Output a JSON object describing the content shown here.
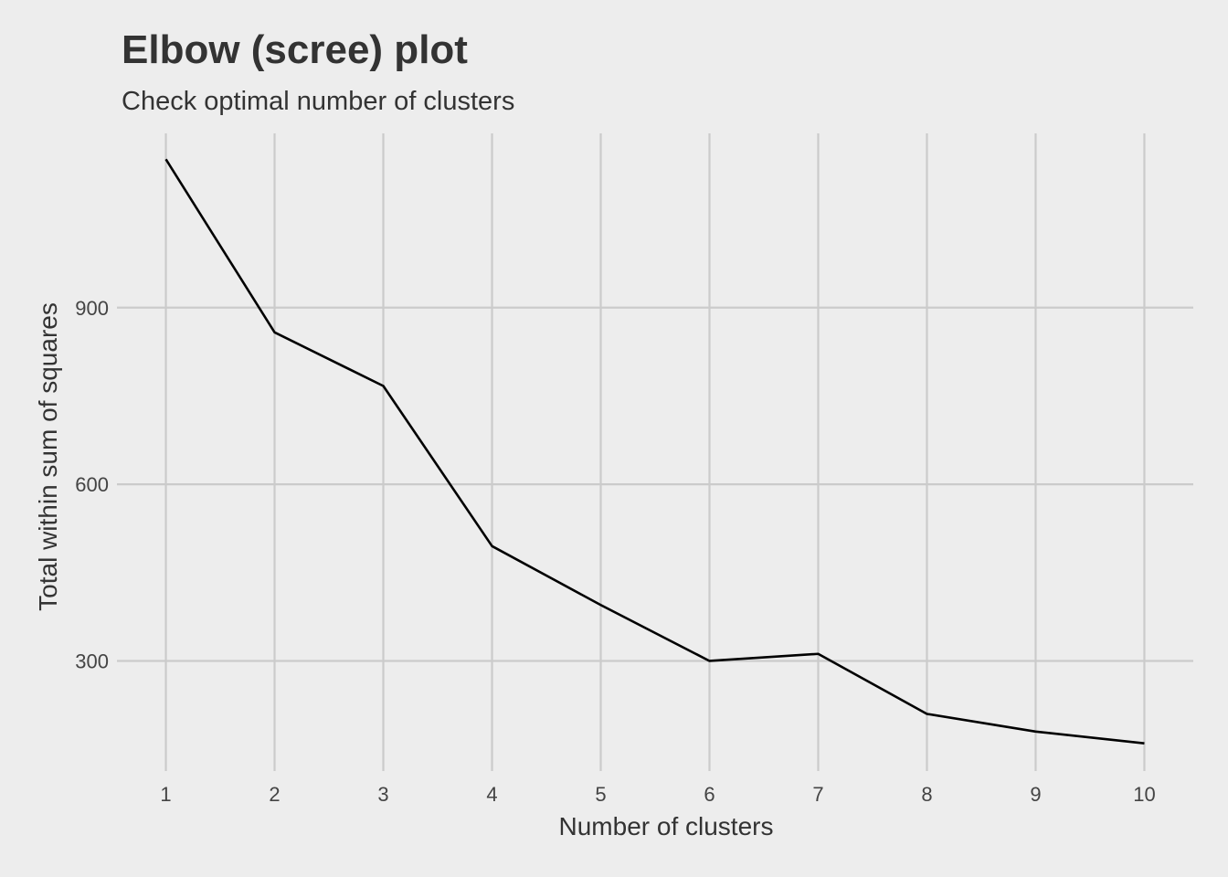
{
  "chart_data": {
    "type": "line",
    "title": "Elbow (scree) plot",
    "subtitle": "Check optimal number of clusters",
    "xlabel": "Number of clusters",
    "ylabel": "Total within sum of squares",
    "x": [
      1,
      2,
      3,
      4,
      5,
      6,
      7,
      8,
      9,
      10
    ],
    "series": [
      {
        "values": [
          1152,
          858,
          767,
          495,
          395,
          300,
          312,
          210,
          180,
          160
        ],
        "color": "#000000"
      }
    ],
    "xlim": [
      0.55,
      10.45
    ],
    "ylim": [
      113,
      1196
    ],
    "x_ticks": [
      1,
      2,
      3,
      4,
      5,
      6,
      7,
      8,
      9,
      10
    ],
    "y_ticks": [
      300,
      600,
      900
    ],
    "grid": true,
    "background": "#ededed",
    "grid_color": "#cbcbcb"
  }
}
